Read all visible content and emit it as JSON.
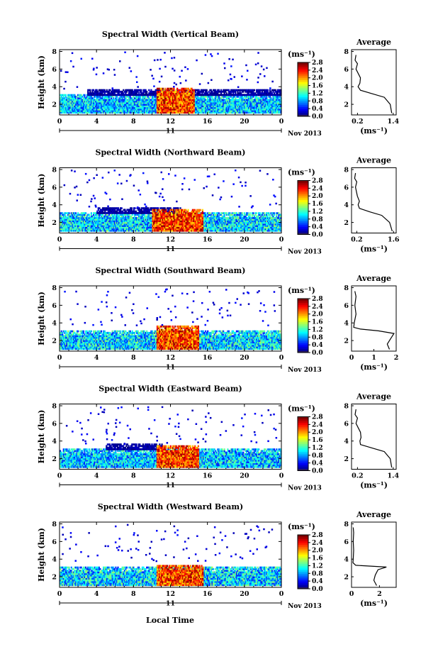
{
  "figure": {
    "xlabel": "Local Time"
  },
  "chart_data": [
    {
      "type": "heatmap",
      "title": "Spectral Width (Vertical Beam)",
      "ylabel": "Height (km)",
      "xticks": [
        "0",
        "4",
        "8",
        "12",
        "16",
        "20",
        "0"
      ],
      "yticks": [
        "2",
        "4",
        "6",
        "8"
      ],
      "day_label": "11",
      "month_label": "Nov 2013",
      "xlim": [
        0,
        24
      ],
      "ylim": [
        0.8,
        8.2
      ],
      "colorbar": {
        "unit": "(ms⁻¹)",
        "ticks": [
          "0.0",
          "0.4",
          "0.8",
          "1.2",
          "1.6",
          "2.0",
          "2.4",
          "2.8"
        ],
        "range": [
          0,
          2.8
        ]
      },
      "layers": [
        {
          "y": [
            1,
            3
          ],
          "x": [
            0,
            24
          ],
          "value_range": [
            0.4,
            1.4
          ]
        },
        {
          "y": [
            3,
            3.6
          ],
          "x": [
            3,
            24
          ],
          "value_range": [
            0.0,
            0.2
          ]
        },
        {
          "y": [
            1,
            3.8
          ],
          "x": [
            10.5,
            14.5
          ],
          "value_range": [
            1.8,
            2.8
          ]
        }
      ],
      "average": {
        "title": "Average",
        "xlabel": "(ms⁻¹)",
        "xticks": [
          "0.2",
          "1.4"
        ],
        "yticks": [
          "2",
          "4",
          "6",
          "8"
        ],
        "xlim": [
          0,
          1.5
        ],
        "ylim": [
          0.8,
          8.2
        ],
        "profile": {
          "height": [
            1,
            2,
            2.8,
            3.2,
            3.6,
            4.0,
            4.4,
            5.0,
            6.0,
            6.6,
            7.0,
            7.6
          ],
          "value": [
            1.35,
            1.3,
            1.1,
            0.7,
            0.3,
            0.22,
            0.28,
            0.3,
            0.15,
            0.2,
            0.12,
            0.15
          ]
        }
      }
    },
    {
      "type": "heatmap",
      "title": "Spectral Width (Northward Beam)",
      "ylabel": "Height (km)",
      "xticks": [
        "0",
        "4",
        "8",
        "12",
        "16",
        "20",
        "0"
      ],
      "yticks": [
        "2",
        "4",
        "6",
        "8"
      ],
      "day_label": "11",
      "month_label": "Nov 2013",
      "xlim": [
        0,
        24
      ],
      "ylim": [
        0.8,
        8.2
      ],
      "colorbar": {
        "unit": "(ms⁻¹)",
        "ticks": [
          "0.0",
          "0.4",
          "0.8",
          "1.2",
          "1.6",
          "2.0",
          "2.4",
          "2.8"
        ],
        "range": [
          0,
          2.8
        ]
      },
      "layers": [
        {
          "y": [
            1,
            3
          ],
          "x": [
            0,
            24
          ],
          "value_range": [
            0.4,
            1.5
          ]
        },
        {
          "y": [
            3,
            3.6
          ],
          "x": [
            4,
            13
          ],
          "value_range": [
            0.0,
            0.2
          ]
        },
        {
          "y": [
            1,
            3.4
          ],
          "x": [
            10,
            15.5
          ],
          "value_range": [
            1.8,
            2.8
          ]
        }
      ],
      "average": {
        "title": "Average",
        "xlabel": "(ms⁻¹)",
        "xticks": [
          "0.2",
          "1.6"
        ],
        "yticks": [
          "2",
          "4",
          "6",
          "8"
        ],
        "xlim": [
          0,
          1.7
        ],
        "ylim": [
          0.8,
          8.2
        ],
        "profile": {
          "height": [
            1,
            2,
            2.8,
            3.2,
            3.6,
            4.0,
            4.4,
            5.0,
            6.0,
            6.6,
            7.0,
            7.6
          ],
          "value": [
            1.55,
            1.45,
            1.15,
            0.7,
            0.3,
            0.25,
            0.3,
            0.22,
            0.15,
            0.2,
            0.12,
            0.15
          ]
        }
      }
    },
    {
      "type": "heatmap",
      "title": "Spectral Width (Southward Beam)",
      "ylabel": "Height (km)",
      "xticks": [
        "0",
        "4",
        "8",
        "12",
        "16",
        "20",
        "0"
      ],
      "yticks": [
        "2",
        "4",
        "6",
        "8"
      ],
      "day_label": "11",
      "month_label": "Nov 2013",
      "xlim": [
        0,
        24
      ],
      "ylim": [
        0.8,
        8.2
      ],
      "colorbar": {
        "unit": "(ms⁻¹)",
        "ticks": [
          "0.0",
          "0.4",
          "0.8",
          "1.2",
          "1.6",
          "2.0",
          "2.4",
          "2.8"
        ],
        "range": [
          0,
          2.8
        ]
      },
      "layers": [
        {
          "y": [
            1,
            3
          ],
          "x": [
            0,
            24
          ],
          "value_range": [
            0.4,
            1.5
          ]
        },
        {
          "y": [
            1,
            3.6
          ],
          "x": [
            10.5,
            15
          ],
          "value_range": [
            1.8,
            2.8
          ]
        }
      ],
      "average": {
        "title": "Average",
        "xlabel": "(ms⁻¹)",
        "xticks": [
          "0",
          "1",
          "2"
        ],
        "yticks": [
          "2",
          "4",
          "6",
          "8"
        ],
        "xlim": [
          0,
          2
        ],
        "ylim": [
          0.8,
          8.2
        ],
        "profile": {
          "height": [
            1,
            1.6,
            2.2,
            2.8,
            3.1,
            3.3,
            3.5,
            4.0,
            5.0,
            6.0,
            7.0,
            7.6
          ],
          "value": [
            1.7,
            1.6,
            1.75,
            1.9,
            1.2,
            0.4,
            0.1,
            0.12,
            0.2,
            0.15,
            0.2,
            0.15
          ]
        }
      }
    },
    {
      "type": "heatmap",
      "title": "Spectral Width (Eastward Beam)",
      "ylabel": "Height (km)",
      "xticks": [
        "0",
        "4",
        "8",
        "12",
        "16",
        "20",
        "0"
      ],
      "yticks": [
        "2",
        "4",
        "6",
        "8"
      ],
      "day_label": "11",
      "month_label": "Nov 2013",
      "xlim": [
        0,
        24
      ],
      "ylim": [
        0.8,
        8.2
      ],
      "colorbar": {
        "unit": "(ms⁻¹)",
        "ticks": [
          "0.0",
          "0.4",
          "0.8",
          "1.2",
          "1.6",
          "2.0",
          "2.4",
          "2.8"
        ],
        "range": [
          0,
          2.8
        ]
      },
      "layers": [
        {
          "y": [
            1,
            3
          ],
          "x": [
            0,
            24
          ],
          "value_range": [
            0.4,
            1.4
          ]
        },
        {
          "y": [
            3,
            3.6
          ],
          "x": [
            5,
            11
          ],
          "value_range": [
            0.0,
            0.2
          ]
        },
        {
          "y": [
            1,
            3.4
          ],
          "x": [
            10.5,
            15
          ],
          "value_range": [
            1.8,
            2.8
          ]
        }
      ],
      "average": {
        "title": "Average",
        "xlabel": "(ms⁻¹)",
        "xticks": [
          "0.2",
          "1.4"
        ],
        "yticks": [
          "2",
          "4",
          "6",
          "8"
        ],
        "xlim": [
          0,
          1.5
        ],
        "ylim": [
          0.8,
          8.2
        ],
        "profile": {
          "height": [
            1,
            2,
            2.8,
            3.2,
            3.6,
            4.0,
            4.4,
            5.0,
            6.0,
            6.6,
            7.0,
            7.6
          ],
          "value": [
            1.35,
            1.3,
            1.1,
            0.7,
            0.3,
            0.28,
            0.32,
            0.3,
            0.15,
            0.2,
            0.12,
            0.15
          ]
        }
      }
    },
    {
      "type": "heatmap",
      "title": "Spectral Width (Westward Beam)",
      "ylabel": "Height (km)",
      "xticks": [
        "0",
        "4",
        "8",
        "12",
        "16",
        "20",
        "0"
      ],
      "yticks": [
        "2",
        "4",
        "6",
        "8"
      ],
      "day_label": "11",
      "month_label": "Nov 2013",
      "xlim": [
        0,
        24
      ],
      "ylim": [
        0.8,
        8.2
      ],
      "colorbar": {
        "unit": "(ms⁻¹)",
        "ticks": [
          "0.0",
          "0.4",
          "0.8",
          "1.2",
          "1.6",
          "2.0",
          "2.4",
          "2.8"
        ],
        "range": [
          0,
          2.8
        ]
      },
      "layers": [
        {
          "y": [
            1,
            3
          ],
          "x": [
            0,
            24
          ],
          "value_range": [
            0.4,
            1.5
          ]
        },
        {
          "y": [
            1,
            3.2
          ],
          "x": [
            10.5,
            15.5
          ],
          "value_range": [
            1.8,
            2.8
          ]
        }
      ],
      "average": {
        "title": "Average",
        "xlabel": "(ms⁻¹)",
        "xticks": [
          "0",
          "2"
        ],
        "yticks": [
          "2",
          "4",
          "6",
          "8"
        ],
        "xlim": [
          0,
          3.2
        ],
        "ylim": [
          0.8,
          8.2
        ],
        "profile": {
          "height": [
            1,
            1.6,
            2.2,
            2.8,
            3.1,
            3.3,
            3.6,
            4.0,
            5.0,
            6.0,
            7.0,
            7.6
          ],
          "value": [
            1.8,
            1.6,
            1.7,
            1.9,
            2.5,
            0.3,
            0.1,
            0.12,
            0.15,
            0.12,
            0.15,
            0.12
          ]
        }
      }
    }
  ]
}
